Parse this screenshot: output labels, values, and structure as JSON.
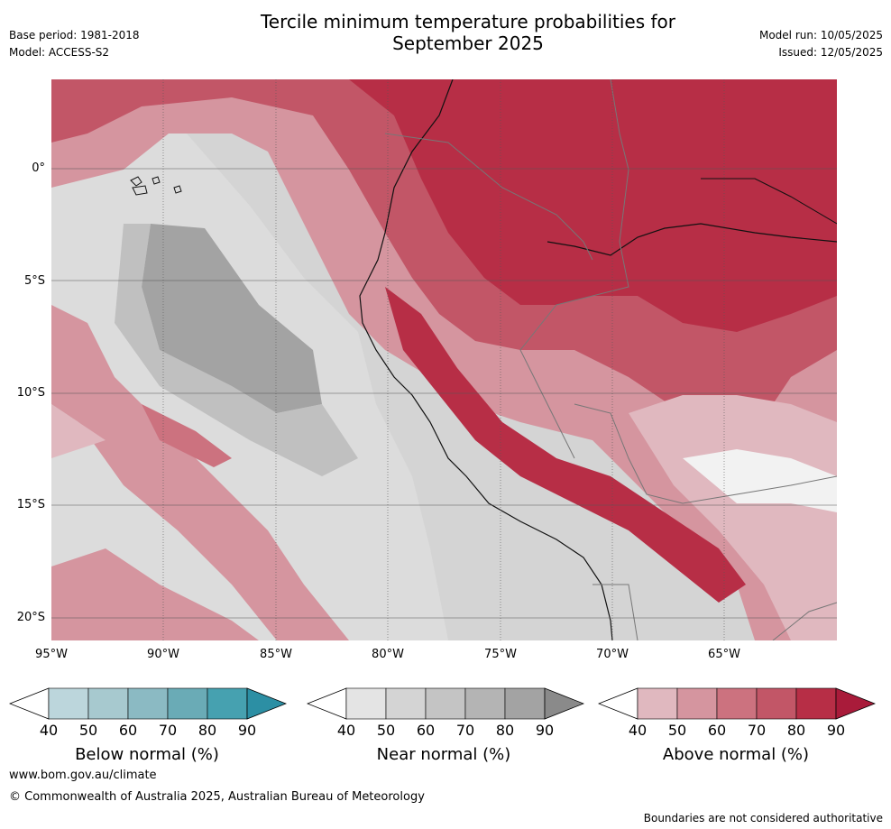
{
  "header": {
    "title_line1": "Tercile minimum temperature probabilities for",
    "title_line2": "September 2025",
    "base_period": "Base period: 1981-2018",
    "model": "Model: ACCESS-S2",
    "model_run": "Model run: 10/05/2025",
    "issued": "Issued: 12/05/2025"
  },
  "map": {
    "lat_labels": [
      "0°",
      "5°S",
      "10°S",
      "15°S",
      "20°S"
    ],
    "lon_labels": [
      "95°W",
      "90°W",
      "85°W",
      "80°W",
      "75°W",
      "70°W",
      "65°W"
    ],
    "ocean_color": "#d4d4d4"
  },
  "colorbars": [
    {
      "title": "Below normal (%)",
      "ticks": [
        "40",
        "50",
        "60",
        "70",
        "80",
        "90"
      ],
      "colors": [
        "#ffffff",
        "#bcd6dc",
        "#a7c9cf",
        "#8bbac3",
        "#6aabb6",
        "#46a1b0",
        "#2c8fa4"
      ]
    },
    {
      "title": "Near normal (%)",
      "ticks": [
        "40",
        "50",
        "60",
        "70",
        "80",
        "90"
      ],
      "colors": [
        "#ffffff",
        "#e4e4e4",
        "#d4d4d4",
        "#c4c4c4",
        "#b4b4b4",
        "#a3a3a3",
        "#8a8a8a"
      ]
    },
    {
      "title": "Above normal (%)",
      "ticks": [
        "40",
        "50",
        "60",
        "70",
        "80",
        "90"
      ],
      "colors": [
        "#ffffff",
        "#e0b8bf",
        "#d5959f",
        "#cc727f",
        "#c25667",
        "#b72e46",
        "#a91b3a"
      ]
    }
  ],
  "footer": {
    "website": "www.bom.gov.au/climate",
    "copyright": "© Commonwealth of Australia 2025, Australian Bureau of Meteorology",
    "disclaimer": "Boundaries are not considered authoritative"
  }
}
